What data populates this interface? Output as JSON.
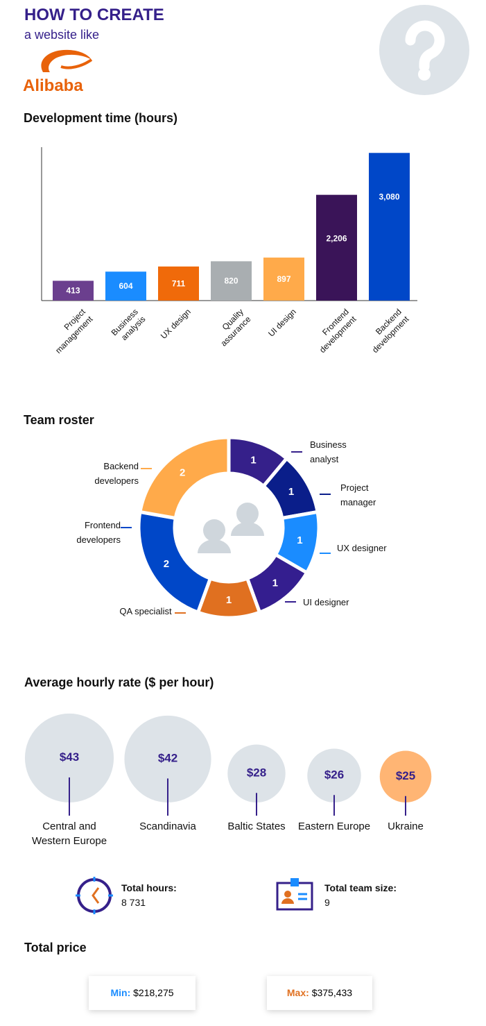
{
  "header": {
    "title": "HOW TO CREATE",
    "subtitle": "a website like",
    "logo": "Alibaba"
  },
  "chart_data": [
    {
      "type": "bar",
      "title": "Development time (hours)",
      "categories": [
        "Project management",
        "Business analysis",
        "UX design",
        "Quality assurance",
        "UI design",
        "Frontend development",
        "Backend development"
      ],
      "values": [
        413,
        604,
        711,
        820,
        897,
        2206,
        3080
      ],
      "value_labels": [
        "413",
        "604",
        "711",
        "820",
        "897",
        "2,206",
        "3,080"
      ],
      "colors": [
        "#6b3f8e",
        "#1a8cff",
        "#f06a0a",
        "#a9aeb1",
        "#ffaa4a",
        "#3a1458",
        "#0047c8"
      ],
      "ylim": [
        0,
        3200
      ]
    },
    {
      "type": "donut",
      "title": "Team roster",
      "categories": [
        "Business analyst",
        "Project manager",
        "UX designer",
        "UI designer",
        "QA specialist",
        "Frontend developers",
        "Backend developers"
      ],
      "values": [
        1,
        1,
        1,
        1,
        1,
        2,
        2
      ],
      "colors": [
        "#35208a",
        "#0a1e8a",
        "#1a8cff",
        "#341e8f",
        "#e07020",
        "#0047c8",
        "#ffaa4a"
      ]
    },
    {
      "type": "bubble",
      "title": "Average hourly rate ($ per hour)",
      "categories": [
        "Central and Western Europe",
        "Scandinavia",
        "Baltic States",
        "Eastern Europe",
        "Ukraine"
      ],
      "values": [
        43,
        42,
        28,
        26,
        25
      ],
      "value_labels": [
        "$43",
        "$42",
        "$28",
        "$26",
        "$25"
      ],
      "colors": [
        "#dde3e8",
        "#dde3e8",
        "#dde3e8",
        "#dde3e8",
        "#ffb574"
      ]
    }
  ],
  "totals": {
    "hours": {
      "label": "Total hours:",
      "value": "8 731"
    },
    "team": {
      "label": "Total team size:",
      "value": "9"
    }
  },
  "price": {
    "title": "Total price",
    "min": {
      "label": "Min:",
      "value": "$218,275"
    },
    "max": {
      "label": "Max:",
      "value": "$375,433"
    }
  }
}
